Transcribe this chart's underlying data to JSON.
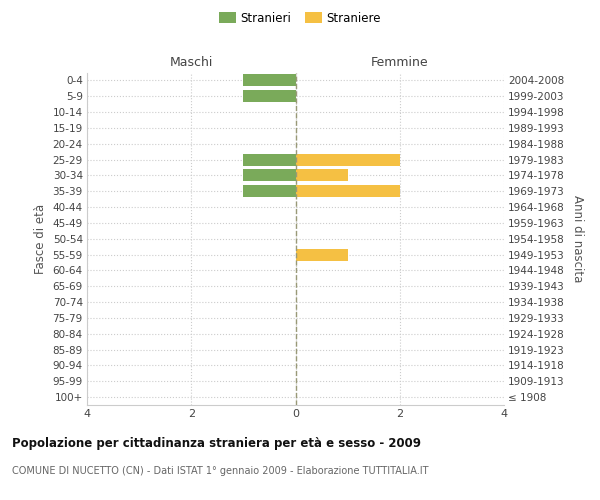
{
  "age_groups": [
    "100+",
    "95-99",
    "90-94",
    "85-89",
    "80-84",
    "75-79",
    "70-74",
    "65-69",
    "60-64",
    "55-59",
    "50-54",
    "45-49",
    "40-44",
    "35-39",
    "30-34",
    "25-29",
    "20-24",
    "15-19",
    "10-14",
    "5-9",
    "0-4"
  ],
  "birth_years": [
    "≤ 1908",
    "1909-1913",
    "1914-1918",
    "1919-1923",
    "1924-1928",
    "1929-1933",
    "1934-1938",
    "1939-1943",
    "1944-1948",
    "1949-1953",
    "1954-1958",
    "1959-1963",
    "1964-1968",
    "1969-1973",
    "1974-1978",
    "1979-1983",
    "1984-1988",
    "1989-1993",
    "1994-1998",
    "1999-2003",
    "2004-2008"
  ],
  "maschi": [
    0,
    0,
    0,
    0,
    0,
    0,
    0,
    0,
    0,
    0,
    0,
    0,
    0,
    1,
    1,
    1,
    0,
    0,
    0,
    1,
    1
  ],
  "femmine": [
    0,
    0,
    0,
    0,
    0,
    0,
    0,
    0,
    0,
    1,
    0,
    0,
    0,
    2,
    1,
    2,
    0,
    0,
    0,
    0,
    0
  ],
  "color_maschi": "#7aaa5a",
  "color_femmine": "#f5c043",
  "title_main": "Popolazione per cittadinanza straniera per età e sesso - 2009",
  "title_sub": "COMUNE DI NUCETTO (CN) - Dati ISTAT 1° gennaio 2009 - Elaborazione TUTTITALIA.IT",
  "legend_maschi": "Stranieri",
  "legend_femmine": "Straniere",
  "xlabel_left": "Maschi",
  "xlabel_right": "Femmine",
  "ylabel_left": "Fasce di età",
  "ylabel_right": "Anni di nascita",
  "xlim": 4,
  "bg_color": "#ffffff",
  "grid_color": "#cccccc",
  "bar_height": 0.75
}
